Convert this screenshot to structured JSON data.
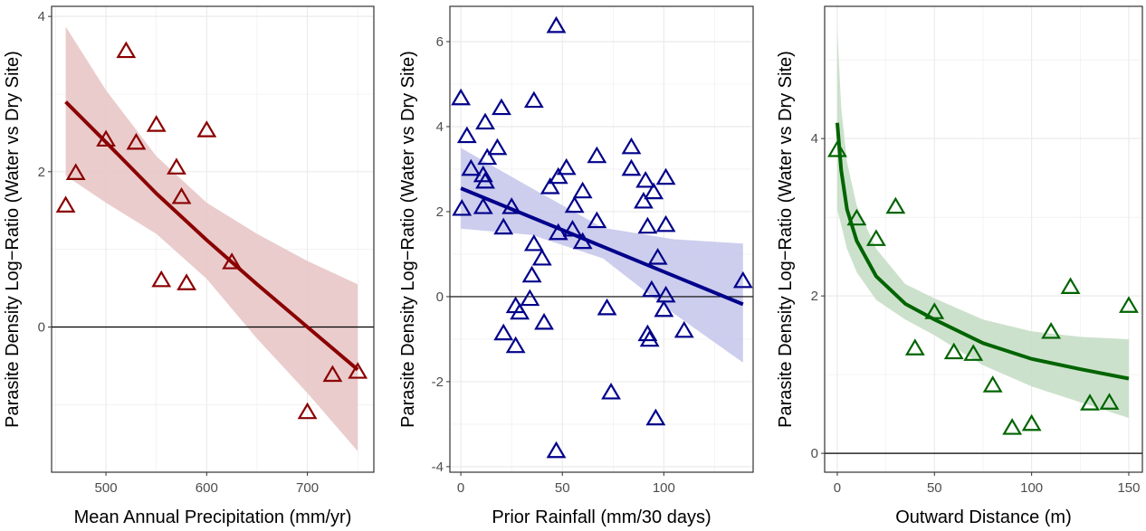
{
  "chart_data": [
    {
      "type": "scatter",
      "xlabel": "Mean Annual Precipitation (mm/yr)",
      "ylabel": "Parasite Density Log−Ratio (Water vs Dry Site)",
      "xlim": [
        446,
        766
      ],
      "ylim": [
        -1.87,
        4.13
      ],
      "xticks": [
        500,
        600,
        700
      ],
      "yticks": [
        0,
        2,
        4
      ],
      "grid": true,
      "reference_line_y": 0,
      "color": "#8B0000",
      "ribbon_color": "#E8C6C6",
      "marker": "open-triangle",
      "points": [
        [
          460,
          1.56
        ],
        [
          470,
          1.98
        ],
        [
          520,
          3.55
        ],
        [
          500,
          2.41
        ],
        [
          530,
          2.37
        ],
        [
          550,
          2.6
        ],
        [
          600,
          2.53
        ],
        [
          570,
          2.05
        ],
        [
          575,
          1.67
        ],
        [
          555,
          0.6
        ],
        [
          580,
          0.56
        ],
        [
          625,
          0.83
        ],
        [
          700,
          -1.1
        ],
        [
          725,
          -0.62
        ],
        [
          750,
          -0.58
        ]
      ],
      "fit": [
        [
          460,
          2.9
        ],
        [
          500,
          2.38
        ],
        [
          550,
          1.72
        ],
        [
          600,
          1.12
        ],
        [
          650,
          0.55
        ],
        [
          700,
          0.0
        ],
        [
          750,
          -0.55
        ]
      ],
      "ribbon_upper": [
        [
          460,
          3.87
        ],
        [
          500,
          3.05
        ],
        [
          550,
          2.2
        ],
        [
          600,
          1.6
        ],
        [
          650,
          1.2
        ],
        [
          700,
          0.85
        ],
        [
          750,
          0.55
        ]
      ],
      "ribbon_lower": [
        [
          460,
          1.95
        ],
        [
          500,
          1.6
        ],
        [
          550,
          1.2
        ],
        [
          600,
          0.62
        ],
        [
          650,
          -0.15
        ],
        [
          700,
          -0.85
        ],
        [
          750,
          -1.6
        ]
      ]
    },
    {
      "type": "scatter",
      "xlabel": "Prior Rainfall (mm/30 days)",
      "ylabel": "Parasite Density Log−Ratio (Water vs Dry Site)",
      "xlim": [
        -5.4,
        144
      ],
      "ylim": [
        -4.13,
        6.83
      ],
      "xticks": [
        0,
        50,
        100
      ],
      "yticks": [
        -4,
        -2,
        0,
        2,
        4,
        6
      ],
      "grid": true,
      "reference_line_y": 0,
      "color": "#00008B",
      "ribbon_color": "#C8C8EC",
      "marker": "open-triangle",
      "points": [
        [
          0,
          4.66
        ],
        [
          3,
          3.77
        ],
        [
          0.5,
          2.06
        ],
        [
          5,
          3.0
        ],
        [
          11,
          2.85
        ],
        [
          12,
          4.09
        ],
        [
          12,
          2.7
        ],
        [
          13,
          3.26
        ],
        [
          18,
          3.49
        ],
        [
          20,
          4.43
        ],
        [
          11,
          2.1
        ],
        [
          21,
          1.62
        ],
        [
          25,
          2.1
        ],
        [
          21,
          -0.87
        ],
        [
          27,
          -0.23
        ],
        [
          29,
          -0.38
        ],
        [
          27,
          -1.17
        ],
        [
          36,
          4.6
        ],
        [
          36,
          1.23
        ],
        [
          35,
          0.49
        ],
        [
          34,
          -0.06
        ],
        [
          40,
          0.89
        ],
        [
          41,
          -0.62
        ],
        [
          44,
          2.57
        ],
        [
          48,
          2.81
        ],
        [
          48,
          1.49
        ],
        [
          52,
          3.02
        ],
        [
          55,
          1.57
        ],
        [
          56,
          2.13
        ],
        [
          60,
          2.47
        ],
        [
          60,
          1.28
        ],
        [
          67,
          3.3
        ],
        [
          67,
          1.77
        ],
        [
          72,
          -0.28
        ],
        [
          74,
          -2.26
        ],
        [
          47,
          6.36
        ],
        [
          47,
          -3.64
        ],
        [
          84,
          3.51
        ],
        [
          84,
          3.0
        ],
        [
          91,
          2.72
        ],
        [
          90,
          2.23
        ],
        [
          92,
          1.64
        ],
        [
          95,
          2.45
        ],
        [
          92,
          -0.89
        ],
        [
          93,
          -1.02
        ],
        [
          94,
          0.15
        ],
        [
          97,
          0.91
        ],
        [
          101,
          2.79
        ],
        [
          101,
          1.68
        ],
        [
          101,
          0.02
        ],
        [
          100,
          -0.32
        ],
        [
          110,
          -0.81
        ],
        [
          96,
          -2.87
        ],
        [
          139,
          0.36
        ]
      ],
      "fit": [
        [
          0,
          2.55
        ],
        [
          139,
          -0.18
        ]
      ],
      "ribbon_upper": [
        [
          0,
          3.5
        ],
        [
          35,
          2.55
        ],
        [
          70,
          1.62
        ],
        [
          105,
          1.35
        ],
        [
          139,
          1.25
        ]
      ],
      "ribbon_lower": [
        [
          0,
          1.6
        ],
        [
          35,
          1.45
        ],
        [
          70,
          0.9
        ],
        [
          105,
          -0.4
        ],
        [
          139,
          -1.55
        ]
      ]
    },
    {
      "type": "scatter",
      "xlabel": "Outward Distance (m)",
      "ylabel": "Parasite Density Log−Ratio (Water vs Dry Site)",
      "xlim": [
        -6.5,
        157
      ],
      "ylim": [
        -0.24,
        5.68
      ],
      "xticks": [
        0,
        50,
        100,
        150
      ],
      "yticks": [
        0,
        2,
        4
      ],
      "grid": true,
      "reference_line_y": 0,
      "color": "#006400",
      "ribbon_color": "#C6DEC6",
      "marker": "open-triangle",
      "points": [
        [
          0,
          3.85
        ],
        [
          10,
          2.98
        ],
        [
          20,
          2.72
        ],
        [
          30,
          3.13
        ],
        [
          40,
          1.33
        ],
        [
          50,
          1.79
        ],
        [
          60,
          1.28
        ],
        [
          70,
          1.26
        ],
        [
          80,
          0.86
        ],
        [
          90,
          0.32
        ],
        [
          100,
          0.37
        ],
        [
          110,
          1.54
        ],
        [
          120,
          2.11
        ],
        [
          130,
          0.63
        ],
        [
          140,
          0.64
        ],
        [
          150,
          1.87
        ]
      ],
      "fit": [
        [
          0,
          4.2
        ],
        [
          2,
          3.6
        ],
        [
          5,
          3.1
        ],
        [
          10,
          2.7
        ],
        [
          20,
          2.25
        ],
        [
          35,
          1.9
        ],
        [
          50,
          1.7
        ],
        [
          75,
          1.4
        ],
        [
          100,
          1.2
        ],
        [
          125,
          1.07
        ],
        [
          150,
          0.95
        ]
      ],
      "ribbon_upper": [
        [
          0,
          5.4
        ],
        [
          2,
          4.4
        ],
        [
          5,
          3.7
        ],
        [
          10,
          3.15
        ],
        [
          20,
          2.6
        ],
        [
          35,
          2.15
        ],
        [
          50,
          1.97
        ],
        [
          75,
          1.7
        ],
        [
          100,
          1.55
        ],
        [
          125,
          1.48
        ],
        [
          150,
          1.45
        ]
      ],
      "ribbon_lower": [
        [
          0,
          3.1
        ],
        [
          2,
          2.9
        ],
        [
          5,
          2.6
        ],
        [
          10,
          2.3
        ],
        [
          20,
          1.95
        ],
        [
          35,
          1.7
        ],
        [
          50,
          1.5
        ],
        [
          75,
          1.12
        ],
        [
          100,
          0.85
        ],
        [
          125,
          0.65
        ],
        [
          150,
          0.45
        ]
      ]
    }
  ]
}
